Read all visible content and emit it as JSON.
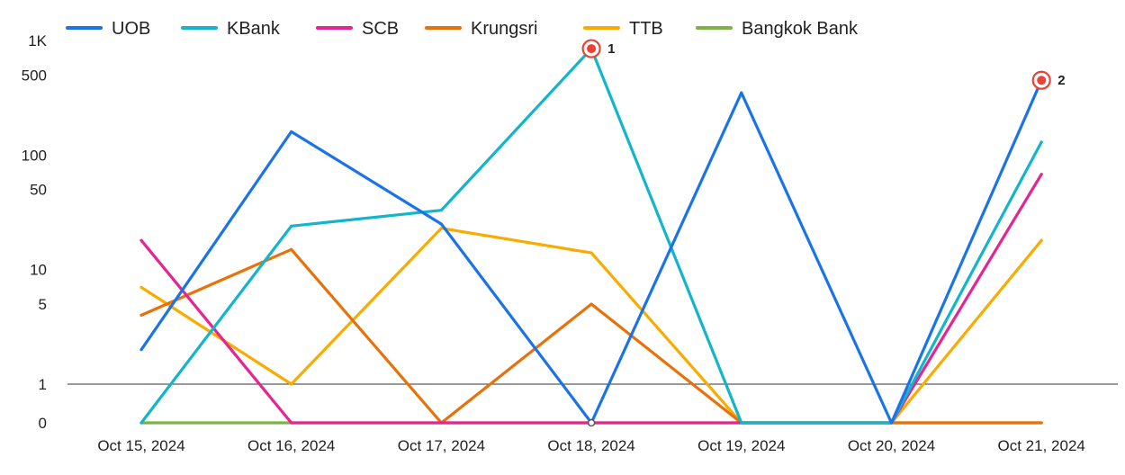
{
  "chart_data": {
    "type": "line",
    "title": "",
    "xlabel": "",
    "ylabel": "",
    "y_scale": "log",
    "categories": [
      "Oct 15, 2024",
      "Oct 16, 2024",
      "Oct 17, 2024",
      "Oct 18, 2024",
      "Oct 19, 2024",
      "Oct 20, 2024",
      "Oct 21, 2024"
    ],
    "y_ticks": [
      {
        "value": 0,
        "label": "0"
      },
      {
        "value": 1,
        "label": "1"
      },
      {
        "value": 5,
        "label": "5"
      },
      {
        "value": 10,
        "label": "10"
      },
      {
        "value": 50,
        "label": "50"
      },
      {
        "value": 100,
        "label": "100"
      },
      {
        "value": 500,
        "label": "500"
      },
      {
        "value": 1000,
        "label": "1K"
      }
    ],
    "ylim": [
      0,
      1000
    ],
    "legend_position": "top",
    "series": [
      {
        "name": "UOB",
        "color": "#1a73e8",
        "values": [
          2,
          160,
          25,
          0,
          350,
          0,
          450
        ]
      },
      {
        "name": "KBank",
        "color": "#12b5cb",
        "values": [
          0,
          24,
          33,
          850,
          0,
          0,
          130
        ]
      },
      {
        "name": "SCB",
        "color": "#e52592",
        "values": [
          18,
          0,
          0,
          0,
          0,
          0,
          68
        ]
      },
      {
        "name": "Krungsri",
        "color": "#e8710a",
        "values": [
          4,
          15,
          0,
          5,
          0,
          0,
          0
        ]
      },
      {
        "name": "TTB",
        "color": "#f9ab00",
        "values": [
          7,
          1,
          23,
          14,
          0,
          0,
          18
        ]
      },
      {
        "name": "Bangkok Bank",
        "color": "#7cb342",
        "values": [
          0,
          0,
          0,
          0,
          0,
          0,
          0
        ]
      }
    ],
    "annotations": [
      {
        "label": "1",
        "series": "KBank",
        "category": "Oct 18, 2024",
        "value": 850
      },
      {
        "label": "2",
        "series": "UOB",
        "category": "Oct 21, 2024",
        "value": 450
      }
    ]
  }
}
